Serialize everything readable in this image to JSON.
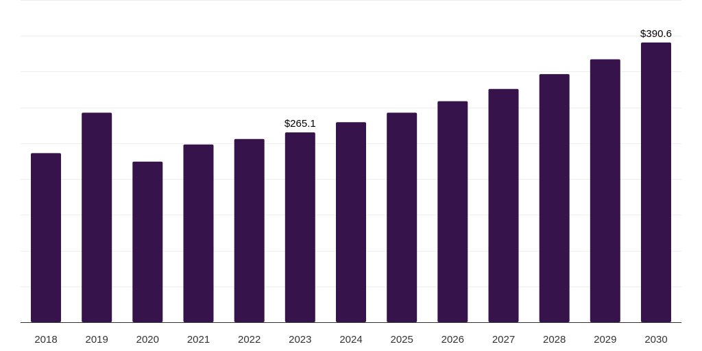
{
  "colors": {
    "bar": "#36134a",
    "grid": "#eeeeee",
    "axis": "#333333",
    "text": "#333333",
    "background": "#ffffff"
  },
  "chart_data": {
    "type": "bar",
    "title": "",
    "xlabel": "",
    "ylabel": "",
    "categories": [
      "2018",
      "2019",
      "2020",
      "2021",
      "2022",
      "2023",
      "2024",
      "2025",
      "2026",
      "2027",
      "2028",
      "2029",
      "2030"
    ],
    "values": [
      236.1,
      292.6,
      224.2,
      248.3,
      255.9,
      265.1,
      279.4,
      292.6,
      308.7,
      325.8,
      346.5,
      367.2,
      390.6
    ],
    "data_labels": [
      {
        "category": "2023",
        "text": "$265.1"
      },
      {
        "category": "2030",
        "text": "$390.6"
      }
    ],
    "ylim": [
      0,
      450
    ],
    "grid": true,
    "y_tick_labels_shown": false,
    "legend": "none"
  }
}
